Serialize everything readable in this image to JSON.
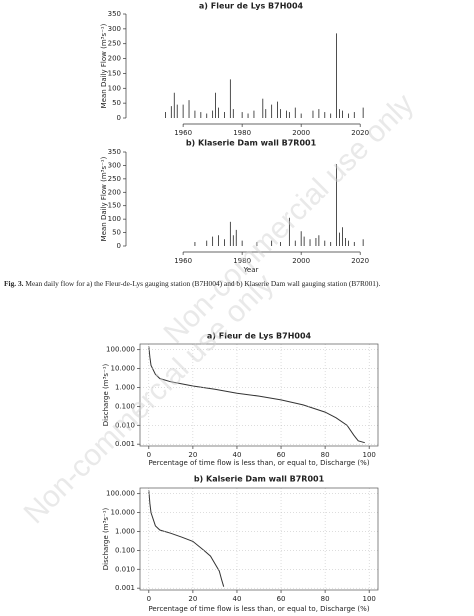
{
  "chart_data": [
    {
      "type": "bar",
      "title": "a) Fleur de Lys B7H004",
      "ylabel": "Mean Daily Flow (m³s⁻¹)",
      "x": [
        1954,
        1956,
        1957,
        1958,
        1960,
        1962,
        1964,
        1966,
        1968,
        1970,
        1971,
        1972,
        1974,
        1976,
        1977,
        1980,
        1982,
        1984,
        1987,
        1988,
        1990,
        1992,
        1993,
        1995,
        1996,
        1998,
        2000,
        2004,
        2006,
        2008,
        2010,
        2012,
        2013,
        2014,
        2016,
        2018,
        2021
      ],
      "values": [
        20,
        40,
        85,
        45,
        45,
        60,
        25,
        20,
        15,
        25,
        85,
        35,
        20,
        130,
        30,
        20,
        15,
        25,
        65,
        30,
        45,
        55,
        30,
        25,
        20,
        35,
        15,
        25,
        30,
        20,
        15,
        285,
        30,
        25,
        15,
        20,
        35
      ],
      "color": "#222222",
      "xlim": [
        1942,
        2024
      ],
      "ylim": [
        0,
        350
      ],
      "xticks": [
        1960,
        1980,
        2000,
        2020
      ],
      "yticks": [
        0,
        50,
        100,
        150,
        200,
        250,
        300,
        350
      ]
    },
    {
      "type": "bar",
      "title": "b) Klaserie Dam wall B7R001",
      "ylabel": "Mean Daily Flow (m³s⁻¹)",
      "xlabel": "Year",
      "x": [
        1964,
        1968,
        1970,
        1972,
        1974,
        1976,
        1977,
        1978,
        1980,
        1985,
        1990,
        1993,
        1996,
        1998,
        2000,
        2001,
        2003,
        2005,
        2006,
        2008,
        2010,
        2012,
        2013,
        2014,
        2015,
        2016,
        2018,
        2021
      ],
      "values": [
        15,
        20,
        35,
        40,
        25,
        90,
        40,
        60,
        20,
        15,
        20,
        15,
        105,
        20,
        55,
        35,
        25,
        30,
        40,
        20,
        15,
        305,
        50,
        70,
        30,
        20,
        15,
        25
      ],
      "color": "#222222",
      "xlim": [
        1942,
        2024
      ],
      "ylim": [
        0,
        350
      ],
      "xticks": [
        1960,
        1980,
        2000,
        2020
      ],
      "yticks": [
        0,
        50,
        100,
        150,
        200,
        250,
        300,
        350
      ]
    },
    {
      "type": "line",
      "title": "a) Fleur de Lys B7H004",
      "ylabel": "Discharge (m³s⁻¹)",
      "xlabel": "Percentage of time flow is less than, or equal to, Discharge (%)",
      "x": [
        0,
        0.5,
        1,
        3,
        5,
        10,
        20,
        30,
        40,
        50,
        60,
        70,
        80,
        85,
        90,
        93,
        95,
        98
      ],
      "values": [
        150,
        40,
        15,
        5,
        3,
        2,
        1.2,
        0.8,
        0.5,
        0.35,
        0.22,
        0.12,
        0.05,
        0.025,
        0.01,
        0.003,
        0.0015,
        0.0012
      ],
      "color": "#333333",
      "log_y": true,
      "grid": true,
      "xlim": [
        -4,
        104
      ],
      "ylim": [
        0.0008,
        200
      ],
      "xticks": [
        0,
        20,
        40,
        60,
        80,
        100
      ],
      "yticks": [
        {
          "value": 0.001,
          "label": "0.001"
        },
        {
          "value": 0.01,
          "label": "0.010"
        },
        {
          "value": 0.1,
          "label": "0.100"
        },
        {
          "value": 1,
          "label": "1.000"
        },
        {
          "value": 10,
          "label": "10.000"
        },
        {
          "value": 100,
          "label": "100.000"
        }
      ]
    },
    {
      "type": "line",
      "title": "b) Kalserie Dam wall B7R001",
      "ylabel": "Discharge (m³s⁻¹)",
      "xlabel": "Percentage of time flow is less than, or equal to, Discharge (%)",
      "x": [
        0,
        0.5,
        1,
        3,
        5,
        10,
        15,
        20,
        25,
        28,
        30,
        32,
        33,
        34
      ],
      "values": [
        150,
        30,
        10,
        2,
        1.2,
        0.8,
        0.5,
        0.3,
        0.1,
        0.05,
        0.02,
        0.008,
        0.003,
        0.0012
      ],
      "color": "#333333",
      "log_y": true,
      "grid": true,
      "xlim": [
        -4,
        104
      ],
      "ylim": [
        0.0008,
        200
      ],
      "xticks": [
        0,
        20,
        40,
        60,
        80,
        100
      ],
      "yticks": [
        {
          "value": 0.001,
          "label": "0.001"
        },
        {
          "value": 0.01,
          "label": "0.010"
        },
        {
          "value": 0.1,
          "label": "0.100"
        },
        {
          "value": 1,
          "label": "1.000"
        },
        {
          "value": 10,
          "label": "10.000"
        },
        {
          "value": 100,
          "label": "100.000"
        }
      ]
    }
  ],
  "caption": {
    "label": "Fig. 3.",
    "text": "Mean daily flow for a) the Fleur-de-Lys gauging station (B7H004) and b) Klaserie Dam wall gauging station (B7R001)."
  },
  "watermark": "Non-commercial use only"
}
